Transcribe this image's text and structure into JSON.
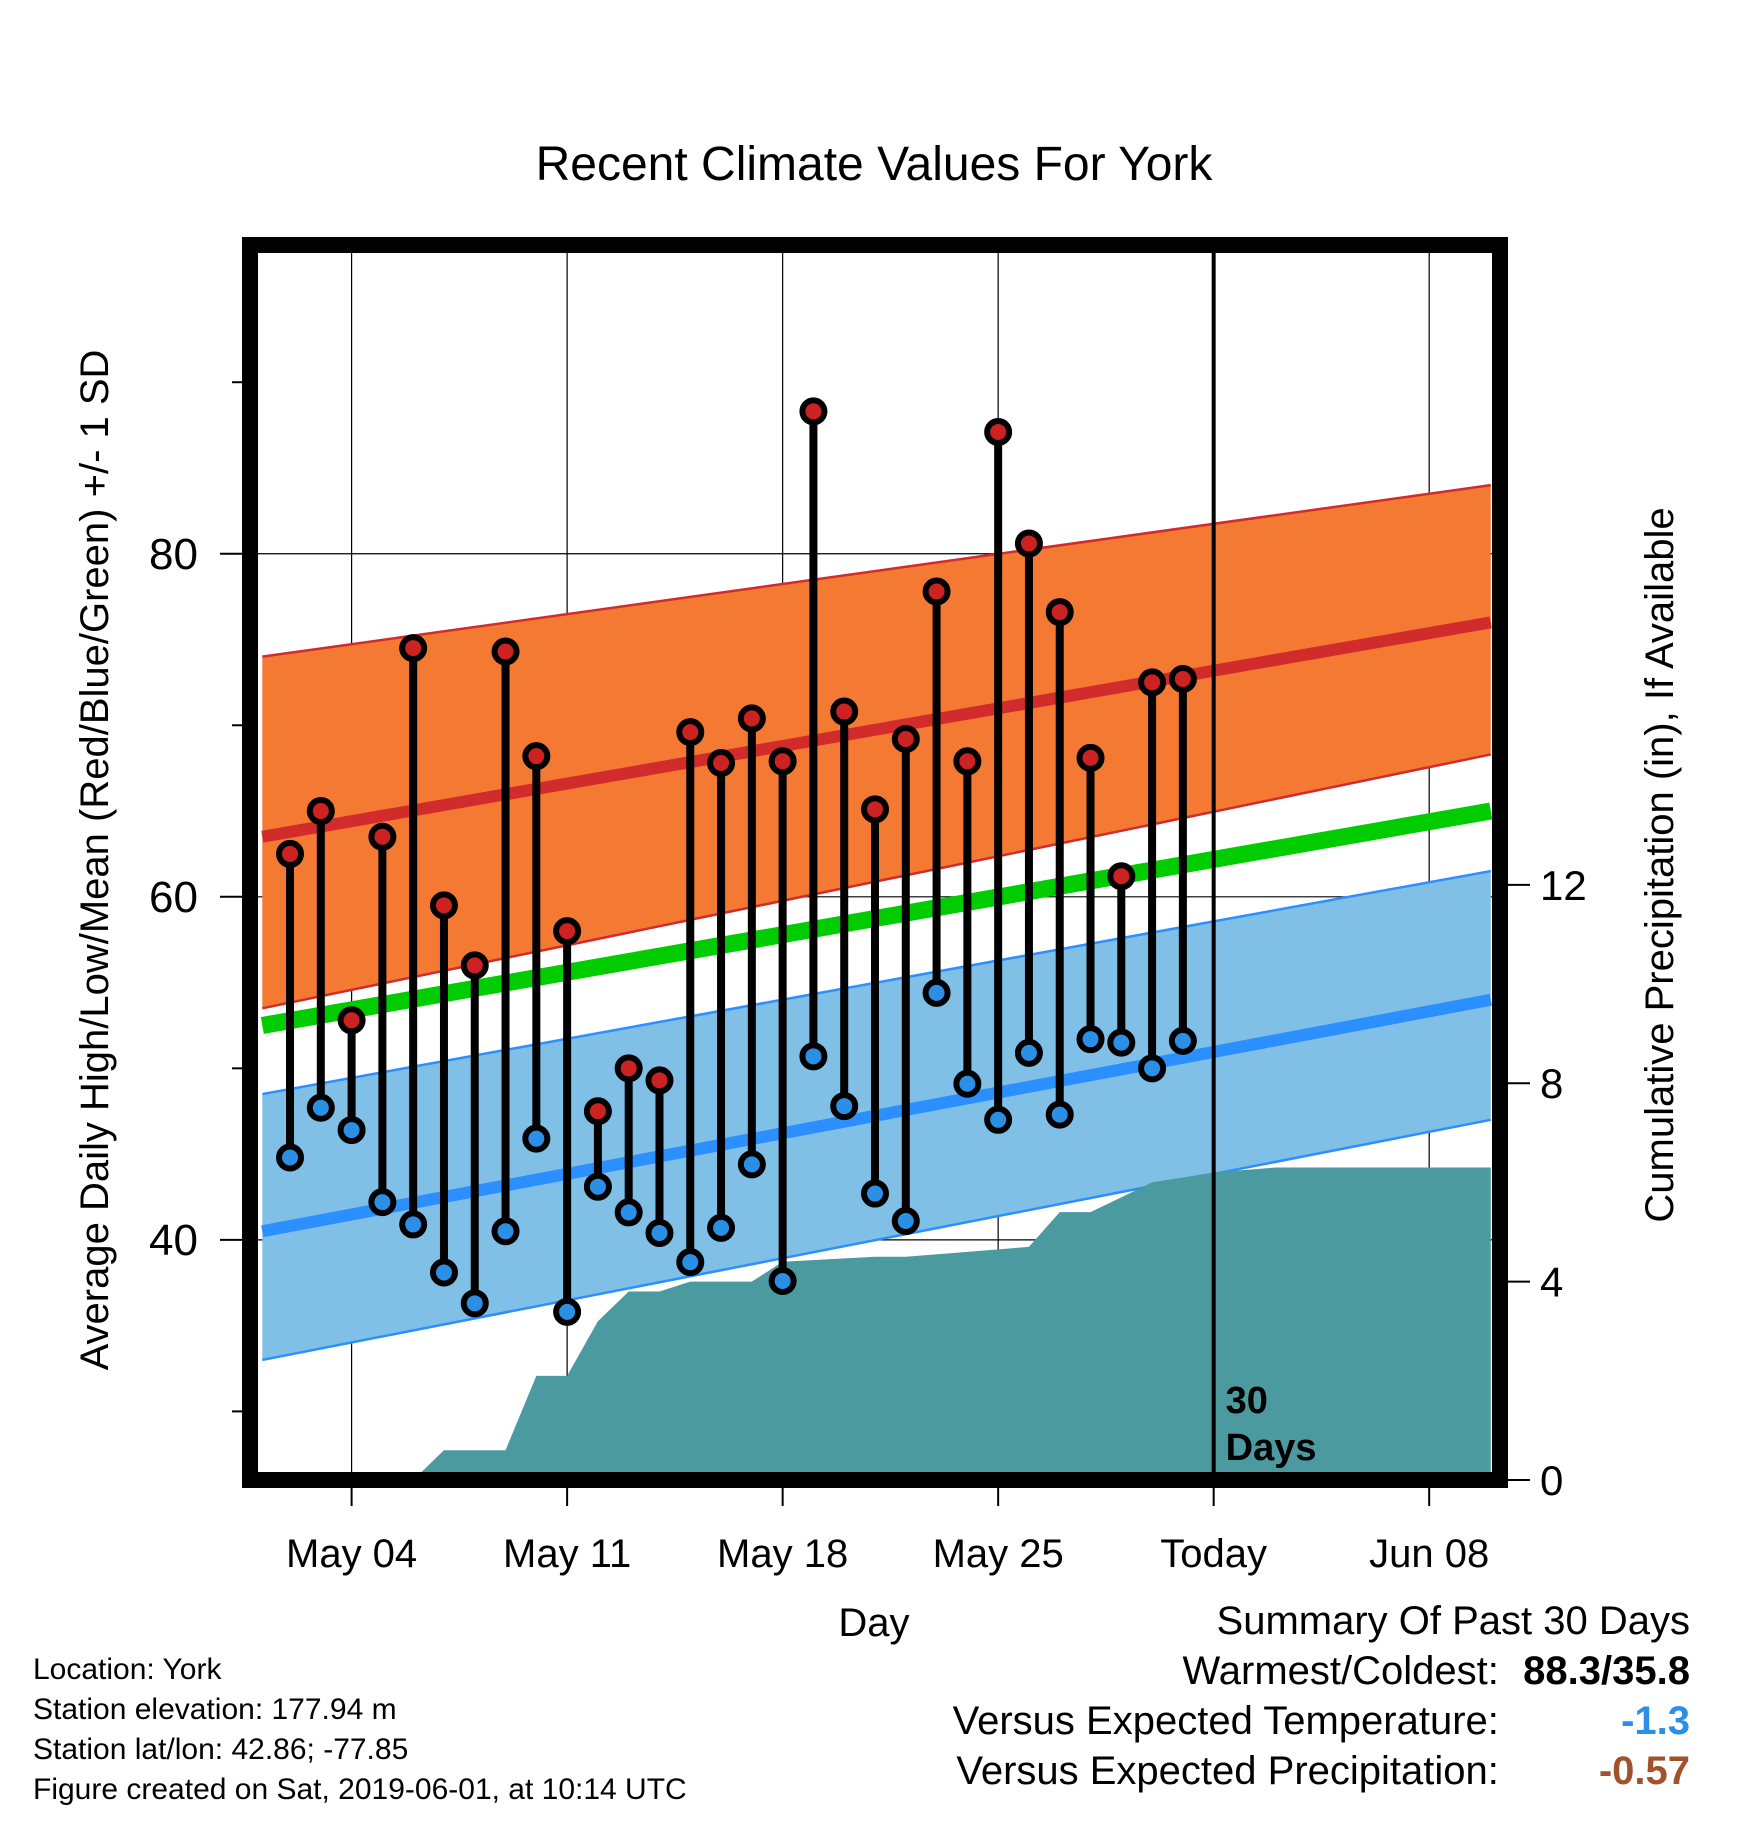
{
  "chart_data": {
    "type": "line",
    "title": "Recent Climate Values For York",
    "xlabel": "Day",
    "ylabel": "Average Daily High/Low/Mean (Red/Blue/Green) +/- 1 SD",
    "y2label": "Cumulative Precipitation (in), If Available",
    "x_ticks": [
      "May 04",
      "May 11",
      "May 18",
      "May 25",
      "Today",
      "Jun 08"
    ],
    "y_ticks": [
      "40",
      "60",
      "80"
    ],
    "y2_ticks": [
      "0",
      "4",
      "8",
      "12"
    ],
    "ylim": [
      26,
      98
    ],
    "y2lim": [
      0,
      24.9
    ],
    "xlim": [
      -3.3,
      37.3
    ],
    "today_label": "30 Days",
    "colors": {
      "high_band": "#f47a33",
      "high_mean": "#d12b2b",
      "low_band": "#80bfe6",
      "low_mean": "#2b8fff",
      "mean": "#00cc00",
      "precip": "#4a9aa0",
      "high_dot": "#cc2222",
      "low_dot": "#2b8fe6"
    },
    "normals": {
      "x": [
        -2.9,
        37
      ],
      "high_mean": [
        63.5,
        76
      ],
      "high_upper": [
        74,
        84
      ],
      "high_lower": [
        53.5,
        68.3
      ],
      "low_mean": [
        40.5,
        54
      ],
      "low_upper": [
        48.5,
        61.5
      ],
      "low_lower": [
        33,
        47
      ],
      "mean": [
        52.5,
        65
      ]
    },
    "series": [
      {
        "name": "High",
        "values": [
          62.5,
          65,
          52.8,
          63.5,
          74.5,
          59.5,
          56,
          74.3,
          68.2,
          58,
          47.5,
          50,
          49.3,
          69.6,
          67.8,
          70.4,
          67.9,
          88.3,
          70.8,
          65.1,
          69.2,
          77.8,
          67.9,
          87.1,
          80.6,
          76.6,
          68.1,
          61.2,
          72.5,
          72.7
        ]
      },
      {
        "name": "Low",
        "values": [
          44.8,
          47.7,
          46.4,
          42.2,
          40.9,
          38.1,
          36.3,
          40.5,
          45.9,
          35.8,
          43.1,
          41.6,
          40.4,
          38.7,
          40.7,
          44.4,
          37.6,
          50.7,
          47.8,
          42.7,
          41.1,
          54.4,
          49.1,
          47,
          50.9,
          47.3,
          51.7,
          51.5,
          50,
          51.6
        ]
      },
      {
        "name": "Cumulative Precipitation",
        "x": [
          2,
          3,
          5,
          6,
          7,
          8,
          9,
          10,
          11,
          12,
          13,
          14,
          17,
          18,
          20,
          22,
          23,
          24,
          26,
          27,
          28,
          30,
          37
        ],
        "values": [
          0,
          0.6,
          0.6,
          2.1,
          2.1,
          3.2,
          3.8,
          3.8,
          4.0,
          4.0,
          4.0,
          4.4,
          4.5,
          4.5,
          4.6,
          4.7,
          5.4,
          5.4,
          6.0,
          6.1,
          6.2,
          6.3,
          6.3
        ]
      }
    ]
  },
  "info": {
    "location": "Location: York",
    "elevation": "Station elevation: 177.94 m",
    "latlon": "Station lat/lon: 42.86; -77.85",
    "created": "Figure created on Sat, 2019-06-01, at 10:14 UTC"
  },
  "summary": {
    "title": "Summary Of Past 30 Days",
    "warmest_label": "Warmest/Coldest:",
    "warmest_value": "88.3/35.8",
    "temp_label": "Versus Expected Temperature:",
    "temp_value": "-1.3",
    "temp_color": "#2b8fe6",
    "precip_label": "Versus Expected Precipitation:",
    "precip_value": "-0.57",
    "precip_color": "#a0522d"
  }
}
